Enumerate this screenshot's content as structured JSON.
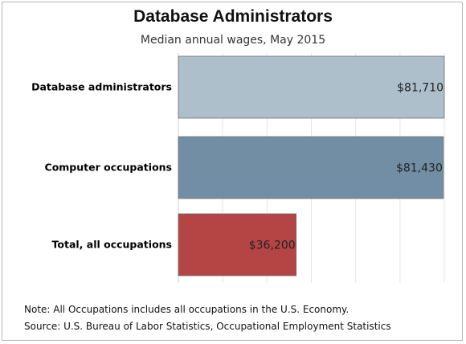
{
  "chart_data": {
    "type": "bar",
    "orientation": "horizontal",
    "title": "Database Administrators",
    "subtitle": "Median annual wages, May 2015",
    "categories": [
      "Database administrators",
      "Computer occupations",
      "Total, all occupations"
    ],
    "values": [
      81710,
      81430,
      36200
    ],
    "value_labels": [
      "$81,710",
      "$81,430",
      "$36,200"
    ],
    "colors": [
      "#adbfcb",
      "#718ea4",
      "#b54444"
    ],
    "xlim": [
      0,
      81710
    ],
    "grid": "vertical gridlines"
  },
  "notes": {
    "note": "Note: All Occupations includes all occupations in the U.S. Economy.",
    "source": "Source: U.S. Bureau of Labor Statistics, Occupational Employment Statistics"
  }
}
